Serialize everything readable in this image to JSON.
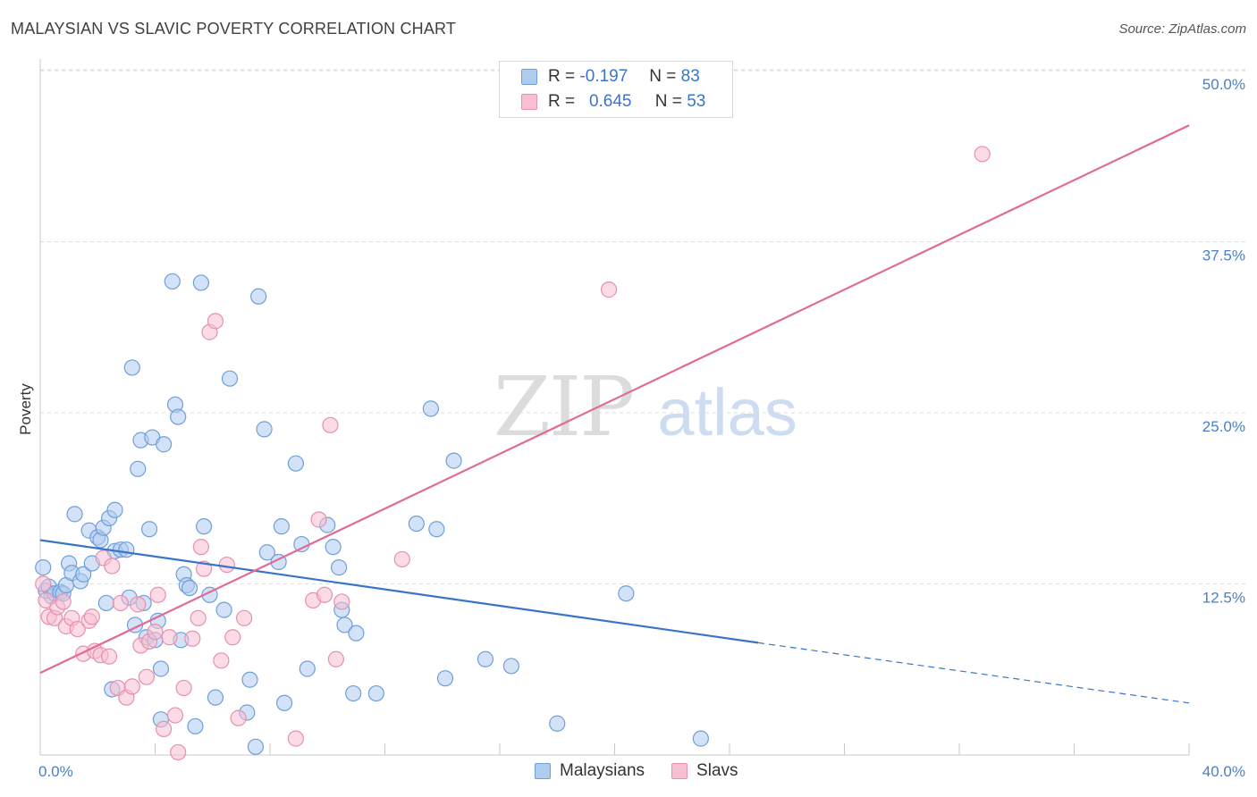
{
  "title": "MALAYSIAN VS SLAVIC POVERTY CORRELATION CHART",
  "source": "Source: ZipAtlas.com",
  "watermark": {
    "zip": "ZIP",
    "atlas": "atlas"
  },
  "legend": {
    "rows": [
      {
        "r_label": "R =",
        "r_value": "-0.197",
        "n_label": "N =",
        "n_value": "83"
      },
      {
        "r_label": "R =",
        "r_value": "0.645",
        "n_label": "N =",
        "n_value": "53"
      }
    ]
  },
  "bottom_legend": [
    "Malaysians",
    "Slavs"
  ],
  "colors": {
    "malaysians_fill": "#aecbf0",
    "malaysians_stroke": "#6f9fd8",
    "malaysians_line": "#3a74c9",
    "slavs_fill": "#f7bfd1",
    "slavs_stroke": "#e88fae",
    "slavs_line": "#e06b94",
    "grid": "#dcdcdc",
    "tick_text": "#4a7fc6"
  },
  "chart_data": {
    "type": "scatter",
    "title": "MALAYSIAN VS SLAVIC POVERTY CORRELATION CHART",
    "xlabel": "",
    "ylabel": "Poverty",
    "xlim": [
      0,
      40
    ],
    "ylim": [
      0,
      50
    ],
    "x_tick_labels": [
      "0.0%",
      "40.0%"
    ],
    "y_ticks": [
      12.5,
      25.0,
      37.5,
      50.0
    ],
    "y_tick_labels": [
      "12.5%",
      "25.0%",
      "37.5%",
      "50.0%"
    ],
    "series": [
      {
        "name": "Malaysians",
        "r": -0.197,
        "n": 83,
        "trend": {
          "x0": 0,
          "y0": 15.7,
          "x1": 25,
          "y1": 8.2,
          "dash_x1": 40,
          "dash_y1": 3.8
        },
        "points": [
          [
            0.1,
            13.7
          ],
          [
            0.2,
            12.0
          ],
          [
            0.3,
            12.3
          ],
          [
            0.4,
            11.6
          ],
          [
            0.5,
            11.8
          ],
          [
            0.7,
            11.9
          ],
          [
            0.8,
            11.8
          ],
          [
            0.9,
            12.4
          ],
          [
            1.0,
            14.0
          ],
          [
            1.1,
            13.3
          ],
          [
            1.2,
            17.6
          ],
          [
            1.4,
            12.7
          ],
          [
            1.5,
            13.2
          ],
          [
            1.7,
            16.4
          ],
          [
            1.8,
            14.0
          ],
          [
            2.0,
            15.9
          ],
          [
            2.1,
            15.7
          ],
          [
            2.2,
            16.6
          ],
          [
            2.3,
            11.1
          ],
          [
            2.4,
            17.3
          ],
          [
            2.6,
            17.9
          ],
          [
            2.6,
            14.9
          ],
          [
            2.8,
            15.0
          ],
          [
            3.0,
            15.0
          ],
          [
            3.1,
            11.5
          ],
          [
            3.2,
            28.3
          ],
          [
            3.3,
            9.5
          ],
          [
            3.4,
            20.9
          ],
          [
            3.5,
            23.0
          ],
          [
            3.6,
            11.1
          ],
          [
            3.7,
            8.6
          ],
          [
            3.8,
            16.5
          ],
          [
            3.9,
            23.2
          ],
          [
            4.0,
            8.4
          ],
          [
            4.1,
            9.8
          ],
          [
            4.2,
            6.3
          ],
          [
            4.3,
            22.7
          ],
          [
            4.6,
            34.6
          ],
          [
            4.7,
            25.6
          ],
          [
            4.8,
            24.7
          ],
          [
            4.9,
            8.4
          ],
          [
            5.0,
            13.2
          ],
          [
            5.1,
            12.4
          ],
          [
            5.2,
            12.2
          ],
          [
            5.4,
            2.1
          ],
          [
            5.6,
            34.5
          ],
          [
            5.7,
            16.7
          ],
          [
            5.9,
            11.7
          ],
          [
            6.1,
            4.2
          ],
          [
            6.4,
            10.6
          ],
          [
            6.6,
            27.5
          ],
          [
            7.2,
            3.1
          ],
          [
            7.3,
            5.5
          ],
          [
            7.5,
            0.6
          ],
          [
            7.6,
            33.5
          ],
          [
            7.8,
            23.8
          ],
          [
            7.9,
            14.8
          ],
          [
            8.3,
            14.1
          ],
          [
            8.4,
            16.7
          ],
          [
            8.5,
            3.8
          ],
          [
            8.9,
            21.3
          ],
          [
            9.1,
            15.4
          ],
          [
            9.3,
            6.3
          ],
          [
            10.0,
            16.8
          ],
          [
            10.2,
            15.2
          ],
          [
            10.4,
            13.7
          ],
          [
            10.5,
            10.6
          ],
          [
            10.6,
            9.5
          ],
          [
            10.9,
            4.5
          ],
          [
            11.0,
            8.9
          ],
          [
            11.7,
            4.5
          ],
          [
            13.1,
            16.9
          ],
          [
            13.6,
            25.3
          ],
          [
            13.8,
            16.5
          ],
          [
            14.1,
            5.6
          ],
          [
            14.4,
            21.5
          ],
          [
            15.5,
            7.0
          ],
          [
            16.4,
            6.5
          ],
          [
            18.0,
            2.3
          ],
          [
            20.4,
            11.8
          ],
          [
            23.0,
            1.2
          ],
          [
            2.5,
            4.8
          ],
          [
            4.2,
            2.6
          ]
        ]
      },
      {
        "name": "Slavs",
        "r": 0.645,
        "n": 53,
        "trend": {
          "x0": 0,
          "y0": 6.0,
          "x1": 40,
          "y1": 46.0
        },
        "points": [
          [
            0.1,
            12.5
          ],
          [
            0.2,
            11.3
          ],
          [
            0.3,
            10.1
          ],
          [
            0.5,
            10.0
          ],
          [
            0.6,
            10.8
          ],
          [
            0.8,
            11.2
          ],
          [
            0.9,
            9.4
          ],
          [
            1.1,
            10.0
          ],
          [
            1.3,
            9.2
          ],
          [
            1.5,
            7.4
          ],
          [
            1.7,
            9.8
          ],
          [
            1.8,
            10.1
          ],
          [
            1.9,
            7.6
          ],
          [
            2.1,
            7.3
          ],
          [
            2.2,
            14.4
          ],
          [
            2.4,
            7.2
          ],
          [
            2.5,
            13.8
          ],
          [
            2.7,
            4.9
          ],
          [
            2.8,
            11.1
          ],
          [
            3.0,
            4.2
          ],
          [
            3.2,
            5.0
          ],
          [
            3.4,
            11.0
          ],
          [
            3.5,
            8.0
          ],
          [
            3.7,
            5.7
          ],
          [
            3.8,
            8.3
          ],
          [
            4.0,
            9.0
          ],
          [
            4.1,
            11.7
          ],
          [
            4.3,
            1.9
          ],
          [
            4.5,
            8.6
          ],
          [
            4.7,
            2.9
          ],
          [
            4.8,
            0.2
          ],
          [
            5.0,
            4.9
          ],
          [
            5.3,
            8.5
          ],
          [
            5.5,
            10.0
          ],
          [
            5.6,
            15.2
          ],
          [
            5.7,
            13.6
          ],
          [
            5.9,
            30.9
          ],
          [
            6.1,
            31.7
          ],
          [
            6.3,
            6.9
          ],
          [
            6.5,
            13.9
          ],
          [
            6.7,
            8.6
          ],
          [
            6.9,
            2.7
          ],
          [
            7.1,
            10.0
          ],
          [
            8.9,
            1.2
          ],
          [
            9.5,
            11.3
          ],
          [
            9.7,
            17.2
          ],
          [
            9.9,
            11.7
          ],
          [
            10.1,
            24.1
          ],
          [
            10.3,
            7.0
          ],
          [
            10.5,
            11.2
          ],
          [
            12.6,
            14.3
          ],
          [
            19.8,
            34.0
          ],
          [
            32.8,
            43.9
          ]
        ]
      }
    ]
  }
}
